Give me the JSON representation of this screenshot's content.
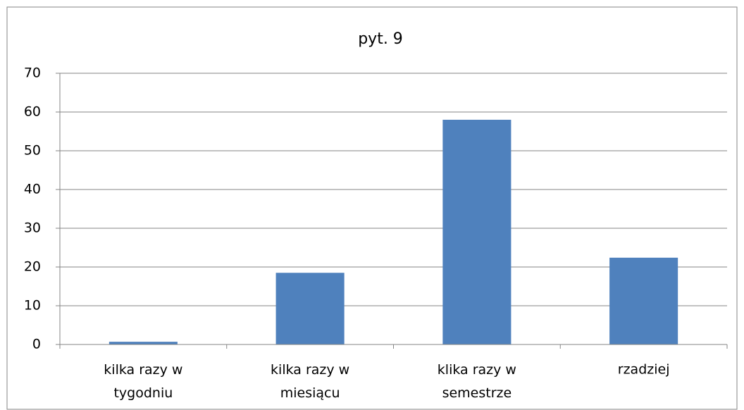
{
  "chart_data": {
    "type": "bar",
    "title": "pyt. 9",
    "categories": [
      "kilka razy w tygodniu",
      "kilka razy w miesiącu",
      "klika razy w semestrze",
      "rzadziej"
    ],
    "values": [
      0.7,
      18.5,
      58,
      22.4
    ],
    "color": "#4f81bd",
    "ylim": [
      0,
      70
    ],
    "yticks": [
      0,
      10,
      20,
      30,
      40,
      50,
      60,
      70
    ],
    "grid": true
  }
}
